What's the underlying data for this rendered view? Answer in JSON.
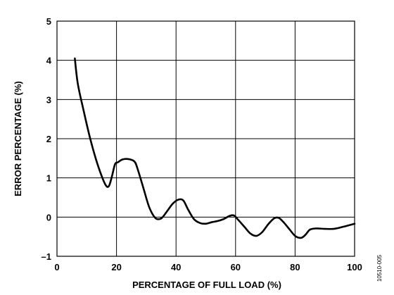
{
  "chart_data": {
    "type": "line",
    "title": "",
    "xlabel": "PERCENTAGE OF FULL LOAD (%)",
    "ylabel": "ERROR PERCENTAGE (%)",
    "xlim": [
      0,
      100
    ],
    "ylim": [
      -1,
      5
    ],
    "x_ticks": [
      0,
      20,
      40,
      60,
      80,
      100
    ],
    "y_ticks": [
      -1,
      0,
      1,
      2,
      3,
      4,
      5
    ],
    "x_tick_labels": [
      "0",
      "20",
      "40",
      "60",
      "80",
      "100"
    ],
    "y_tick_labels": [
      "–1",
      "0",
      "1",
      "2",
      "3",
      "4",
      "5"
    ],
    "grid": true,
    "line_color": "#000000",
    "series": [
      {
        "x": [
          6,
          7,
          9,
          11,
          13,
          15,
          16.5,
          17.5,
          18.5,
          19.5,
          20.5,
          22,
          24,
          26,
          27,
          29,
          31,
          33,
          34.5,
          35.5,
          37,
          39,
          41,
          42.5,
          44,
          46,
          48,
          50,
          52,
          54,
          56,
          58,
          59.5,
          61,
          63,
          65,
          67,
          69,
          71,
          73,
          74.5,
          76,
          78,
          80,
          82,
          83.5,
          85,
          87,
          90,
          93,
          96,
          100
        ],
        "y": [
          4.05,
          3.4,
          2.7,
          2.05,
          1.5,
          1.05,
          0.8,
          0.8,
          1.05,
          1.35,
          1.4,
          1.47,
          1.48,
          1.42,
          1.25,
          0.75,
          0.25,
          -0.02,
          -0.05,
          0.0,
          0.15,
          0.35,
          0.45,
          0.42,
          0.2,
          -0.05,
          -0.15,
          -0.17,
          -0.13,
          -0.1,
          -0.05,
          0.03,
          0.04,
          -0.08,
          -0.25,
          -0.42,
          -0.48,
          -0.38,
          -0.18,
          -0.03,
          -0.02,
          -0.12,
          -0.3,
          -0.48,
          -0.53,
          -0.45,
          -0.32,
          -0.29,
          -0.3,
          -0.3,
          -0.25,
          -0.17
        ]
      }
    ]
  },
  "figure_id": "10510-005"
}
